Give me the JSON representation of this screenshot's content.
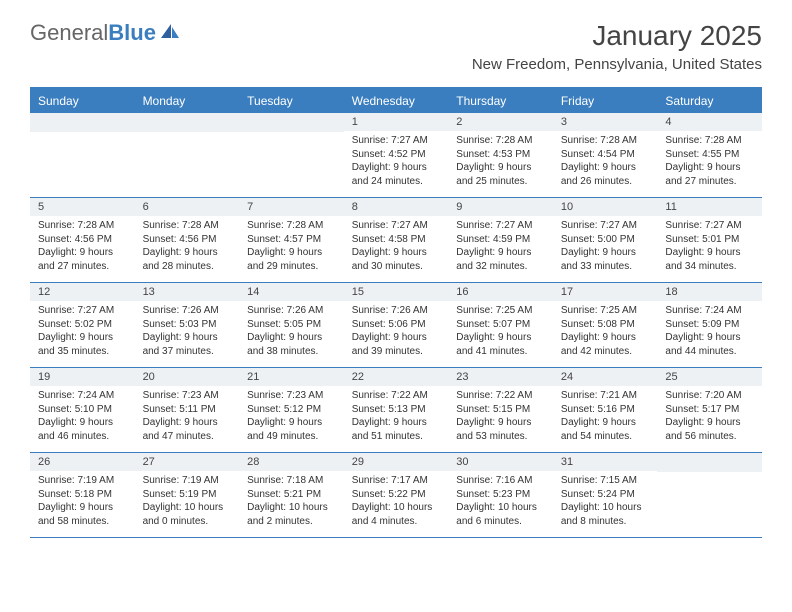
{
  "logo": {
    "text_general": "General",
    "text_blue": "Blue"
  },
  "title": "January 2025",
  "location": "New Freedom, Pennsylvania, United States",
  "colors": {
    "header_bg": "#3a7ebf",
    "daynum_bg": "#eef1f4",
    "text": "#333333",
    "logo_gray": "#666666",
    "logo_blue": "#3a7ebf"
  },
  "day_labels": [
    "Sunday",
    "Monday",
    "Tuesday",
    "Wednesday",
    "Thursday",
    "Friday",
    "Saturday"
  ],
  "weeks": [
    [
      {
        "n": "",
        "lines": []
      },
      {
        "n": "",
        "lines": []
      },
      {
        "n": "",
        "lines": []
      },
      {
        "n": "1",
        "lines": [
          "Sunrise: 7:27 AM",
          "Sunset: 4:52 PM",
          "Daylight: 9 hours",
          "and 24 minutes."
        ]
      },
      {
        "n": "2",
        "lines": [
          "Sunrise: 7:28 AM",
          "Sunset: 4:53 PM",
          "Daylight: 9 hours",
          "and 25 minutes."
        ]
      },
      {
        "n": "3",
        "lines": [
          "Sunrise: 7:28 AM",
          "Sunset: 4:54 PM",
          "Daylight: 9 hours",
          "and 26 minutes."
        ]
      },
      {
        "n": "4",
        "lines": [
          "Sunrise: 7:28 AM",
          "Sunset: 4:55 PM",
          "Daylight: 9 hours",
          "and 27 minutes."
        ]
      }
    ],
    [
      {
        "n": "5",
        "lines": [
          "Sunrise: 7:28 AM",
          "Sunset: 4:56 PM",
          "Daylight: 9 hours",
          "and 27 minutes."
        ]
      },
      {
        "n": "6",
        "lines": [
          "Sunrise: 7:28 AM",
          "Sunset: 4:56 PM",
          "Daylight: 9 hours",
          "and 28 minutes."
        ]
      },
      {
        "n": "7",
        "lines": [
          "Sunrise: 7:28 AM",
          "Sunset: 4:57 PM",
          "Daylight: 9 hours",
          "and 29 minutes."
        ]
      },
      {
        "n": "8",
        "lines": [
          "Sunrise: 7:27 AM",
          "Sunset: 4:58 PM",
          "Daylight: 9 hours",
          "and 30 minutes."
        ]
      },
      {
        "n": "9",
        "lines": [
          "Sunrise: 7:27 AM",
          "Sunset: 4:59 PM",
          "Daylight: 9 hours",
          "and 32 minutes."
        ]
      },
      {
        "n": "10",
        "lines": [
          "Sunrise: 7:27 AM",
          "Sunset: 5:00 PM",
          "Daylight: 9 hours",
          "and 33 minutes."
        ]
      },
      {
        "n": "11",
        "lines": [
          "Sunrise: 7:27 AM",
          "Sunset: 5:01 PM",
          "Daylight: 9 hours",
          "and 34 minutes."
        ]
      }
    ],
    [
      {
        "n": "12",
        "lines": [
          "Sunrise: 7:27 AM",
          "Sunset: 5:02 PM",
          "Daylight: 9 hours",
          "and 35 minutes."
        ]
      },
      {
        "n": "13",
        "lines": [
          "Sunrise: 7:26 AM",
          "Sunset: 5:03 PM",
          "Daylight: 9 hours",
          "and 37 minutes."
        ]
      },
      {
        "n": "14",
        "lines": [
          "Sunrise: 7:26 AM",
          "Sunset: 5:05 PM",
          "Daylight: 9 hours",
          "and 38 minutes."
        ]
      },
      {
        "n": "15",
        "lines": [
          "Sunrise: 7:26 AM",
          "Sunset: 5:06 PM",
          "Daylight: 9 hours",
          "and 39 minutes."
        ]
      },
      {
        "n": "16",
        "lines": [
          "Sunrise: 7:25 AM",
          "Sunset: 5:07 PM",
          "Daylight: 9 hours",
          "and 41 minutes."
        ]
      },
      {
        "n": "17",
        "lines": [
          "Sunrise: 7:25 AM",
          "Sunset: 5:08 PM",
          "Daylight: 9 hours",
          "and 42 minutes."
        ]
      },
      {
        "n": "18",
        "lines": [
          "Sunrise: 7:24 AM",
          "Sunset: 5:09 PM",
          "Daylight: 9 hours",
          "and 44 minutes."
        ]
      }
    ],
    [
      {
        "n": "19",
        "lines": [
          "Sunrise: 7:24 AM",
          "Sunset: 5:10 PM",
          "Daylight: 9 hours",
          "and 46 minutes."
        ]
      },
      {
        "n": "20",
        "lines": [
          "Sunrise: 7:23 AM",
          "Sunset: 5:11 PM",
          "Daylight: 9 hours",
          "and 47 minutes."
        ]
      },
      {
        "n": "21",
        "lines": [
          "Sunrise: 7:23 AM",
          "Sunset: 5:12 PM",
          "Daylight: 9 hours",
          "and 49 minutes."
        ]
      },
      {
        "n": "22",
        "lines": [
          "Sunrise: 7:22 AM",
          "Sunset: 5:13 PM",
          "Daylight: 9 hours",
          "and 51 minutes."
        ]
      },
      {
        "n": "23",
        "lines": [
          "Sunrise: 7:22 AM",
          "Sunset: 5:15 PM",
          "Daylight: 9 hours",
          "and 53 minutes."
        ]
      },
      {
        "n": "24",
        "lines": [
          "Sunrise: 7:21 AM",
          "Sunset: 5:16 PM",
          "Daylight: 9 hours",
          "and 54 minutes."
        ]
      },
      {
        "n": "25",
        "lines": [
          "Sunrise: 7:20 AM",
          "Sunset: 5:17 PM",
          "Daylight: 9 hours",
          "and 56 minutes."
        ]
      }
    ],
    [
      {
        "n": "26",
        "lines": [
          "Sunrise: 7:19 AM",
          "Sunset: 5:18 PM",
          "Daylight: 9 hours",
          "and 58 minutes."
        ]
      },
      {
        "n": "27",
        "lines": [
          "Sunrise: 7:19 AM",
          "Sunset: 5:19 PM",
          "Daylight: 10 hours",
          "and 0 minutes."
        ]
      },
      {
        "n": "28",
        "lines": [
          "Sunrise: 7:18 AM",
          "Sunset: 5:21 PM",
          "Daylight: 10 hours",
          "and 2 minutes."
        ]
      },
      {
        "n": "29",
        "lines": [
          "Sunrise: 7:17 AM",
          "Sunset: 5:22 PM",
          "Daylight: 10 hours",
          "and 4 minutes."
        ]
      },
      {
        "n": "30",
        "lines": [
          "Sunrise: 7:16 AM",
          "Sunset: 5:23 PM",
          "Daylight: 10 hours",
          "and 6 minutes."
        ]
      },
      {
        "n": "31",
        "lines": [
          "Sunrise: 7:15 AM",
          "Sunset: 5:24 PM",
          "Daylight: 10 hours",
          "and 8 minutes."
        ]
      },
      {
        "n": "",
        "lines": []
      }
    ]
  ]
}
